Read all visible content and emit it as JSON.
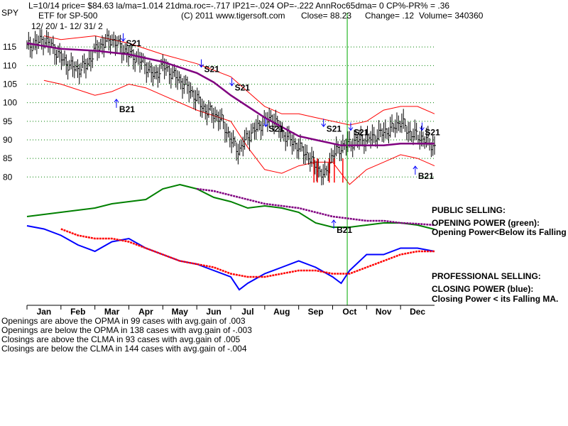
{
  "header": {
    "ticker": "SPY",
    "line1": "L=10/14  price= $84.63  la/ma=1.014  21dma.roc=-.717  IP21=-.024  OP=-.222  AnnRoc65dma= 0  CP%-PR% =  .36",
    "subtitle": "ETF for SP-500",
    "copyright": "(C) 2011  www.tigersoft.com",
    "close": "Close=  88.23",
    "change": "Change= .12",
    "volume": "Volume=  340360",
    "date_range": "12/ 20/ 1-  12/ 31/ 2"
  },
  "right_labels": {
    "public_selling": "PUBLIC SELLING:",
    "opening_power": "OPENING POWER (green):",
    "opening_power_note": "Opening Power<Below its Falling MA",
    "professional_selling": "PROFESSIONAL SELLING:",
    "closing_power": "CLOSING POWER (blue):",
    "closing_power_note": "Closing Power < its Falling MA."
  },
  "stats": [
    "Openings are above the OPMA in   99 cases with avg.gain of  .003",
    "Openings are below the OPMA in  138 cases with avg.gain of -.003",
    "Closings are above the CLMA in  93 cases with avg.gain of  .005",
    "Closings are below the CLMA in  144 cases with avg.gain of -.004"
  ],
  "colors": {
    "price_bars": "#000000",
    "moving_average": "#800080",
    "bands": "#ff0000",
    "opening_power": "#008000",
    "opening_power_ma": "#800080",
    "closing_power": "#0000ff",
    "closing_power_ma": "#ff0000",
    "signal_line": "#00aa00",
    "grid_dots": "#008000"
  },
  "chart_data": {
    "type": "line",
    "y_ticks": [
      115,
      110,
      105,
      100,
      95,
      90,
      85,
      80
    ],
    "ylim": [
      77,
      120
    ],
    "months": [
      "Jan",
      "Feb",
      "Mar",
      "Apr",
      "May",
      "Jun",
      "Jul",
      "Aug",
      "Sep",
      "Oct",
      "Nov",
      "Dec"
    ],
    "x_range": [
      0,
      12
    ],
    "signal_line_x": 9.43,
    "price_series": {
      "name": "SPY",
      "x": [
        0,
        0.25,
        0.5,
        0.75,
        1,
        1.25,
        1.5,
        1.75,
        2,
        2.25,
        2.5,
        2.75,
        3,
        3.25,
        3.5,
        3.75,
        4,
        4.25,
        4.5,
        4.75,
        5,
        5.25,
        5.5,
        5.75,
        6,
        6.25,
        6.5,
        6.75,
        7,
        7.25,
        7.5,
        7.75,
        8,
        8.25,
        8.5,
        8.75,
        9,
        9.25,
        9.5,
        9.75,
        10,
        10.25,
        10.5,
        10.75,
        11,
        11.25,
        11.5,
        11.75,
        12
      ],
      "y": [
        115,
        116,
        117,
        115,
        112,
        110,
        109,
        110,
        114,
        116,
        117,
        115,
        113,
        112,
        110,
        107,
        110,
        108,
        106,
        104,
        101,
        98,
        97,
        95,
        90,
        87,
        91,
        93,
        95,
        96,
        92,
        90,
        88,
        86,
        83,
        80,
        86,
        88,
        89,
        90,
        90,
        91,
        92,
        93,
        95,
        92,
        91,
        90,
        88
      ]
    },
    "moving_average": {
      "name": "21-dma",
      "x": [
        0,
        1,
        2,
        3,
        3.5,
        4,
        4.5,
        5,
        5.5,
        6,
        6.5,
        7,
        7.5,
        8,
        8.5,
        9,
        9.25,
        9.5,
        10,
        10.5,
        11,
        11.5,
        12
      ],
      "y": [
        116,
        114.5,
        114,
        113,
        112,
        111,
        109.5,
        108,
        105.5,
        102,
        99,
        96,
        93.5,
        91,
        90,
        89,
        88.5,
        88.5,
        88.5,
        88.5,
        89,
        89,
        89
      ]
    },
    "band_upper": {
      "x": [
        0.5,
        1,
        2,
        3,
        4,
        5,
        6,
        6.5,
        7,
        7.5,
        8,
        8.5,
        9,
        9.5,
        10,
        10.5,
        11,
        11.5,
        12
      ],
      "y": [
        118,
        117,
        118,
        116,
        113,
        110.5,
        107,
        103,
        99,
        97,
        97,
        96,
        95,
        94,
        95,
        98,
        99,
        99,
        97
      ]
    },
    "band_lower": {
      "x": [
        0.5,
        1,
        2,
        2.5,
        3,
        3.5,
        4,
        5,
        6,
        6.5,
        7,
        7.5,
        8,
        8.5,
        9,
        9.5,
        10,
        10.5,
        11,
        11.5,
        12
      ],
      "y": [
        106,
        105,
        102,
        103,
        105,
        104,
        102,
        98,
        95,
        88,
        82,
        81,
        83,
        84,
        84,
        78,
        82,
        84,
        86,
        85,
        83
      ]
    },
    "opening_power": {
      "name": "OPENING POWER (green)",
      "x": [
        0,
        0.5,
        1,
        1.5,
        2,
        2.5,
        3,
        3.5,
        4,
        4.5,
        5,
        5.5,
        6,
        6.5,
        7,
        7.5,
        8,
        8.5,
        9,
        9.5,
        10,
        10.5,
        11,
        11.5,
        12
      ],
      "y": [
        0.25,
        0.3,
        0.35,
        0.4,
        0.45,
        0.55,
        0.6,
        0.65,
        0.9,
        1.0,
        0.9,
        0.7,
        0.6,
        0.45,
        0.5,
        0.45,
        0.35,
        0.1,
        0,
        0,
        0.05,
        0.1,
        0.1,
        0.05,
        -0.05
      ]
    },
    "opening_power_ma": {
      "x": [
        5,
        5.5,
        6,
        6.5,
        7,
        7.5,
        8,
        8.5,
        9,
        9.5,
        10,
        10.5,
        11,
        11.5,
        12
      ],
      "y": [
        0.9,
        0.85,
        0.75,
        0.65,
        0.55,
        0.5,
        0.45,
        0.35,
        0.25,
        0.2,
        0.15,
        0.15,
        0.1,
        0.08,
        0.05
      ]
    },
    "closing_power": {
      "name": "CLOSING POWER (blue)",
      "x": [
        0,
        0.5,
        1,
        1.5,
        2,
        2.5,
        3,
        3.5,
        4,
        4.5,
        5,
        5.5,
        6,
        6.25,
        6.5,
        7,
        7.5,
        8,
        8.5,
        9,
        9.25,
        9.5,
        10,
        10.5,
        11,
        11.5,
        12
      ],
      "y": [
        1.0,
        0.95,
        0.85,
        0.7,
        0.6,
        0.75,
        0.8,
        0.65,
        0.55,
        0.45,
        0.4,
        0.3,
        0.2,
        0.0,
        0.1,
        0.25,
        0.35,
        0.45,
        0.35,
        0.2,
        0.1,
        0.3,
        0.55,
        0.55,
        0.65,
        0.65,
        0.6
      ]
    },
    "closing_power_ma": {
      "x": [
        1,
        1.5,
        2,
        2.5,
        3,
        3.5,
        4,
        4.5,
        5,
        5.5,
        6,
        6.5,
        7,
        7.5,
        8,
        8.5,
        9,
        9.5,
        10,
        10.5,
        11,
        11.5,
        12
      ],
      "y": [
        0.95,
        0.85,
        0.8,
        0.8,
        0.75,
        0.65,
        0.55,
        0.45,
        0.4,
        0.35,
        0.25,
        0.2,
        0.2,
        0.25,
        0.3,
        0.3,
        0.25,
        0.25,
        0.35,
        0.45,
        0.55,
        0.6,
        0.6
      ]
    },
    "signals": [
      {
        "label": "S21",
        "x": 3.0,
        "y": 116
      },
      {
        "label": "S21",
        "x": 5.3,
        "y": 109
      },
      {
        "label": "S21",
        "x": 6.2,
        "y": 104
      },
      {
        "label": "S21",
        "x": 7.2,
        "y": 93
      },
      {
        "label": "S21",
        "x": 8.9,
        "y": 93
      },
      {
        "label": "S21",
        "x": 9.7,
        "y": 92
      },
      {
        "label": "S21",
        "x": 11.8,
        "y": 92
      },
      {
        "label": "B21",
        "x": 2.8,
        "y": 99
      },
      {
        "label": "B21",
        "x": 11.6,
        "y": 81
      },
      {
        "label": "B21",
        "x": 9.2,
        "y": 0.0
      }
    ]
  }
}
